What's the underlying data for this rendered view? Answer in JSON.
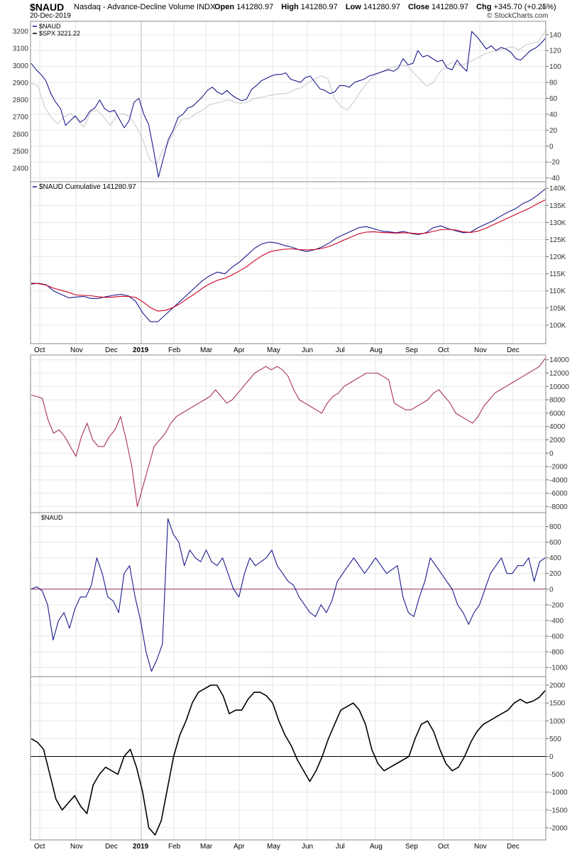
{
  "header": {
    "symbol": "$NAUD",
    "description": "Nasdaq - Advance-Decline Volume INDX",
    "date": "20-Dec-2019",
    "open_label": "Open",
    "open": "141280.97",
    "high_label": "High",
    "high": "141280.97",
    "low_label": "Low",
    "low": "141280.97",
    "close_label": "Close",
    "close": "141280.97",
    "chg_label": "Chg",
    "chg": "+345.70 (+0.25%)",
    "brand": "© StockCharts.com"
  },
  "colors": {
    "naud_line": "#1a1a8c",
    "spx_line": "#cccccc",
    "ma_line": "#cc0022",
    "cum_line": "#a8305a",
    "zero_line": "#993366",
    "osc_line": "#000000",
    "grid": "#e6e6e6",
    "border": "#888888"
  },
  "x_axis": {
    "months": [
      "Oct",
      "Nov",
      "Dec",
      "2019",
      "Feb",
      "Mar",
      "Apr",
      "May",
      "Jun",
      "Jul",
      "Aug",
      "Sep",
      "Oct",
      "Nov",
      "Dec"
    ]
  },
  "chart_data": [
    {
      "type": "line",
      "legend": [
        "$NAUD",
        "$SPX 3221.22"
      ],
      "yaxis_left": {
        "ticks": [
          "3200",
          "3100",
          "3000",
          "2900",
          "2800",
          "2700",
          "2600",
          "2500",
          "2400"
        ],
        "ylim": [
          2330,
          3250
        ]
      },
      "yaxis_right": {
        "ticks": [
          "140",
          "120",
          "100",
          "80",
          "60",
          "40",
          "20",
          "0",
          "-20",
          "-40"
        ],
        "ylim": [
          -43,
          155
        ]
      },
      "series": [
        {
          "name": "$NAUD",
          "axis": "right",
          "values": [
            104,
            96,
            90,
            82,
            66,
            55,
            47,
            26,
            32,
            38,
            30,
            34,
            44,
            48,
            58,
            47,
            43,
            45,
            34,
            23,
            32,
            55,
            60,
            40,
            27,
            -5,
            -39,
            -15,
            8,
            20,
            36,
            40,
            48,
            50,
            56,
            62,
            70,
            74,
            68,
            65,
            70,
            64,
            60,
            57,
            59,
            71,
            76,
            82,
            85,
            88,
            90,
            90,
            92,
            84,
            82,
            80,
            86,
            88,
            80,
            72,
            70,
            66,
            68,
            76,
            76,
            74,
            80,
            82,
            84,
            88,
            90,
            92,
            94,
            96,
            94,
            98,
            110,
            102,
            104,
            120,
            112,
            114,
            110,
            106,
            108,
            98,
            96,
            108,
            100,
            94,
            144,
            138,
            130,
            122,
            126,
            120,
            124,
            122,
            118,
            110,
            108,
            114,
            120,
            123,
            128,
            135
          ]
        },
        {
          "name": "$SPX 3221.22",
          "axis": "left",
          "values": [
            2900,
            2880,
            2760,
            2700,
            2660,
            2700,
            2720,
            2680,
            2640,
            2730,
            2740,
            2700,
            2650,
            2710,
            2720,
            2700,
            2640,
            2560,
            2450,
            2420,
            2510,
            2560,
            2640,
            2690,
            2690,
            2720,
            2740,
            2770,
            2780,
            2790,
            2800,
            2785,
            2780,
            2790,
            2810,
            2815,
            2825,
            2830,
            2835,
            2840,
            2860,
            2870,
            2900,
            2920,
            2940,
            2925,
            2810,
            2760,
            2740,
            2790,
            2850,
            2900,
            2940,
            2960,
            2980,
            2990,
            3000,
            3000,
            2960,
            2920,
            2880,
            2900,
            2960,
            3000,
            3020,
            3000,
            3010,
            3030,
            3050,
            3070,
            3080,
            3090,
            3100,
            3110,
            3090,
            3120,
            3130,
            3140,
            3200
          ]
        }
      ]
    },
    {
      "type": "line",
      "legend": [
        "$NAUD Cumulative 141280.97"
      ],
      "yaxis_right": {
        "ticks": [
          "140K",
          "135K",
          "130K",
          "125K",
          "120K",
          "115K",
          "110K",
          "105K",
          "100K"
        ],
        "ylim": [
          95000,
          141500
        ]
      },
      "series": [
        {
          "name": "$NAUD Cumulative 141280.97",
          "values": [
            112000,
            112200,
            111800,
            110000,
            109000,
            108000,
            108200,
            108400,
            107800,
            107800,
            108300,
            108700,
            109000,
            108600,
            107000,
            103500,
            101000,
            101000,
            103000,
            105000,
            107000,
            109000,
            111000,
            113000,
            114500,
            115500,
            115000,
            117000,
            118500,
            120500,
            122500,
            123800,
            124300,
            124000,
            123300,
            122800,
            122000,
            121500,
            122000,
            122800,
            124000,
            125500,
            126500,
            127500,
            128500,
            128800,
            128200,
            127500,
            127300,
            127000,
            127400,
            126800,
            126500,
            127000,
            128500,
            129000,
            128200,
            127600,
            127000,
            127200,
            128500,
            129500,
            130500,
            131800,
            133000,
            134000,
            135500,
            136500,
            138000,
            139800
          ]
        },
        {
          "name": "",
          "values": [
            112300,
            112100,
            111700,
            110800,
            110200,
            109600,
            108800,
            108700,
            108600,
            108300,
            108100,
            108200,
            108400,
            108400,
            108100,
            106800,
            105100,
            104100,
            104300,
            105100,
            106300,
            107800,
            109200,
            110800,
            112100,
            113100,
            113700,
            114700,
            115900,
            117200,
            118900,
            120300,
            121400,
            121900,
            122200,
            122300,
            122100,
            122000,
            122100,
            122400,
            123000,
            123900,
            124900,
            125800,
            126700,
            127200,
            127300,
            127100,
            127000,
            126900,
            127000,
            126900,
            126700,
            126900,
            127400,
            127900,
            128000,
            127800,
            127300,
            127100,
            127500,
            128300,
            129300,
            130300,
            131300,
            132300,
            133300,
            134300,
            135500,
            136600
          ]
        }
      ]
    },
    {
      "type": "line",
      "yaxis_right": {
        "ticks": [
          "14000",
          "12000",
          "10000",
          "8000",
          "6000",
          "4000",
          "2000",
          "0",
          "-2000",
          "-4000",
          "-6000",
          "-8000"
        ],
        "ylim": [
          -8700,
          14500
        ]
      },
      "series": [
        {
          "name": "",
          "values": [
            8700,
            8500,
            8200,
            5000,
            3000,
            3500,
            2500,
            1000,
            -500,
            2500,
            4500,
            2000,
            1000,
            1000,
            2500,
            3500,
            5500,
            2000,
            -2000,
            -8000,
            -5000,
            -2000,
            1000,
            2000,
            3000,
            4500,
            5500,
            6000,
            6500,
            7000,
            7500,
            8000,
            8500,
            9500,
            8500,
            7500,
            8000,
            9000,
            10000,
            11000,
            12000,
            12500,
            13000,
            12500,
            13000,
            12500,
            11500,
            9500,
            8000,
            7500,
            7000,
            6500,
            6000,
            7500,
            8500,
            9000,
            10000,
            10500,
            11000,
            11500,
            12000,
            12000,
            12000,
            11500,
            11000,
            7500,
            7000,
            6500,
            6500,
            7000,
            7500,
            8000,
            9000,
            9500,
            8500,
            7500,
            6000,
            5500,
            5000,
            4500,
            5500,
            7000,
            8000,
            9000,
            9500,
            10000,
            10500,
            11000,
            11500,
            12000,
            12500,
            13000,
            14200
          ]
        }
      ]
    },
    {
      "type": "line",
      "legend": [
        "$NAUD"
      ],
      "yaxis_right": {
        "ticks": [
          "800",
          "600",
          "400",
          "200",
          "0",
          "-200",
          "-400",
          "-600",
          "-800",
          "-1000"
        ],
        "ylim": [
          -1100,
          960
        ]
      },
      "series": [
        {
          "name": "$NAUD",
          "values": [
            0,
            30,
            -20,
            -200,
            -650,
            -400,
            -300,
            -500,
            -250,
            -100,
            -100,
            50,
            400,
            200,
            -100,
            -150,
            -300,
            200,
            300,
            -100,
            -400,
            -800,
            -1050,
            -900,
            -700,
            900,
            700,
            600,
            300,
            500,
            400,
            350,
            500,
            350,
            300,
            400,
            200,
            0,
            -100,
            200,
            400,
            300,
            350,
            400,
            500,
            300,
            200,
            100,
            50,
            -100,
            -200,
            -300,
            -350,
            -200,
            -300,
            -150,
            100,
            200,
            300,
            400,
            300,
            200,
            300,
            400,
            300,
            200,
            250,
            300,
            -100,
            -300,
            -350,
            -100,
            100,
            400,
            300,
            200,
            100,
            0,
            -200,
            -300,
            -450,
            -300,
            -200,
            0,
            200,
            300,
            400,
            200,
            200,
            300,
            300,
            400,
            100,
            350,
            400
          ]
        }
      ]
    },
    {
      "type": "line",
      "yaxis_right": {
        "ticks": [
          "2000",
          "1500",
          "1000",
          "500",
          "0",
          "-500",
          "-1000",
          "-1500",
          "-2000"
        ],
        "ylim": [
          -2300,
          2200
        ]
      },
      "series": [
        {
          "name": "",
          "values": [
            500,
            400,
            200,
            -500,
            -1200,
            -1500,
            -1300,
            -1100,
            -1400,
            -1600,
            -800,
            -500,
            -300,
            -400,
            -500,
            0,
            200,
            -300,
            -1000,
            -2000,
            -2200,
            -1800,
            -900,
            0,
            600,
            1000,
            1500,
            1800,
            1900,
            2000,
            2000,
            1700,
            1200,
            1300,
            1300,
            1600,
            1800,
            1800,
            1700,
            1500,
            1000,
            600,
            300,
            -100,
            -400,
            -700,
            -400,
            0,
            500,
            900,
            1300,
            1400,
            1500,
            1300,
            900,
            200,
            -200,
            -400,
            -300,
            -200,
            -100,
            0,
            500,
            900,
            1000,
            700,
            200,
            -200,
            -400,
            -300,
            0,
            400,
            700,
            900,
            1000,
            1100,
            1200,
            1300,
            1500,
            1600,
            1500,
            1550,
            1650,
            1850
          ]
        }
      ]
    }
  ]
}
